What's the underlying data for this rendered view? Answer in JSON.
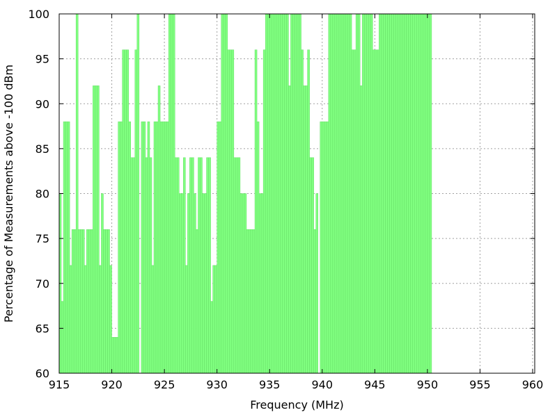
{
  "chart_data": {
    "type": "bar",
    "xlabel": "Frequency (MHz)",
    "ylabel": "Percentage of Measurements above -100 dBm",
    "xlim": [
      915,
      960.2
    ],
    "ylim": [
      60,
      100
    ],
    "x_ticks": [
      915,
      920,
      925,
      930,
      935,
      940,
      945,
      950,
      955,
      960
    ],
    "y_ticks": [
      60,
      65,
      70,
      75,
      80,
      85,
      90,
      95,
      100
    ],
    "grid": true,
    "bar_color": "#80ff80",
    "bar_edge_color": "#66dd66",
    "bin_width_mhz": 0.2,
    "x_start": 915.0,
    "values": [
      80,
      68,
      88,
      88,
      88,
      72,
      76,
      76,
      100,
      76,
      76,
      76,
      72,
      76,
      76,
      76,
      92,
      92,
      92,
      72,
      80,
      76,
      76,
      76,
      72,
      64,
      64,
      64,
      88,
      88,
      96,
      96,
      96,
      88,
      84,
      84,
      96,
      100,
      0,
      88,
      88,
      84,
      88,
      84,
      72,
      88,
      88,
      92,
      88,
      88,
      88,
      88,
      100,
      100,
      100,
      84,
      84,
      80,
      80,
      84,
      72,
      80,
      84,
      84,
      80,
      76,
      84,
      84,
      80,
      80,
      84,
      84,
      68,
      72,
      72,
      88,
      88,
      100,
      100,
      100,
      96,
      96,
      96,
      84,
      84,
      84,
      80,
      80,
      80,
      76,
      76,
      76,
      76,
      96,
      88,
      80,
      80,
      96,
      100,
      100,
      100,
      100,
      100,
      100,
      100,
      100,
      100,
      100,
      100,
      92,
      100,
      100,
      100,
      100,
      100,
      96,
      92,
      92,
      96,
      84,
      84,
      76,
      80,
      0,
      88,
      88,
      88,
      88,
      100,
      100,
      100,
      100,
      100,
      100,
      100,
      100,
      100,
      100,
      100,
      96,
      96,
      100,
      100,
      92,
      100,
      100,
      100,
      100,
      100,
      96,
      96,
      96,
      100,
      100,
      100,
      100,
      100,
      100,
      100,
      100,
      100,
      100,
      100,
      100,
      100,
      100,
      100,
      100,
      100,
      100,
      100,
      100,
      100,
      100,
      100,
      100,
      100
    ]
  }
}
